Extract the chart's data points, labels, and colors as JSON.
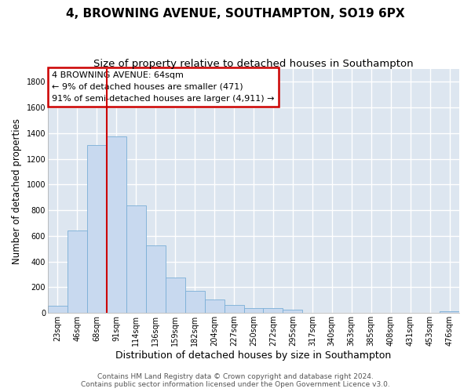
{
  "title_line1": "4, BROWNING AVENUE, SOUTHAMPTON, SO19 6PX",
  "title_line2": "Size of property relative to detached houses in Southampton",
  "xlabel": "Distribution of detached houses by size in Southampton",
  "ylabel": "Number of detached properties",
  "categories": [
    "23sqm",
    "46sqm",
    "68sqm",
    "91sqm",
    "114sqm",
    "136sqm",
    "159sqm",
    "182sqm",
    "204sqm",
    "227sqm",
    "250sqm",
    "272sqm",
    "295sqm",
    "317sqm",
    "340sqm",
    "363sqm",
    "385sqm",
    "408sqm",
    "431sqm",
    "453sqm",
    "476sqm"
  ],
  "values": [
    55,
    640,
    1305,
    1375,
    840,
    525,
    275,
    175,
    105,
    62,
    40,
    35,
    25,
    0,
    0,
    0,
    0,
    0,
    0,
    0,
    16
  ],
  "bar_color": "#c8d9ef",
  "bar_edge_color": "#7aaed6",
  "vline_color": "#cc0000",
  "vline_x": 2.5,
  "annotation_text": "4 BROWNING AVENUE: 64sqm\n← 9% of detached houses are smaller (471)\n91% of semi-detached houses are larger (4,911) →",
  "annotation_facecolor": "white",
  "annotation_edgecolor": "#cc0000",
  "ylim": [
    0,
    1900
  ],
  "yticks": [
    0,
    200,
    400,
    600,
    800,
    1000,
    1200,
    1400,
    1600,
    1800
  ],
  "background_color": "#dde6f0",
  "grid_color": "#ffffff",
  "footer_line1": "Contains HM Land Registry data © Crown copyright and database right 2024.",
  "footer_line2": "Contains public sector information licensed under the Open Government Licence v3.0.",
  "title_fontsize": 11,
  "subtitle_fontsize": 9.5,
  "xlabel_fontsize": 9,
  "ylabel_fontsize": 8.5,
  "tick_fontsize": 7,
  "footer_fontsize": 6.5,
  "annot_fontsize": 8
}
